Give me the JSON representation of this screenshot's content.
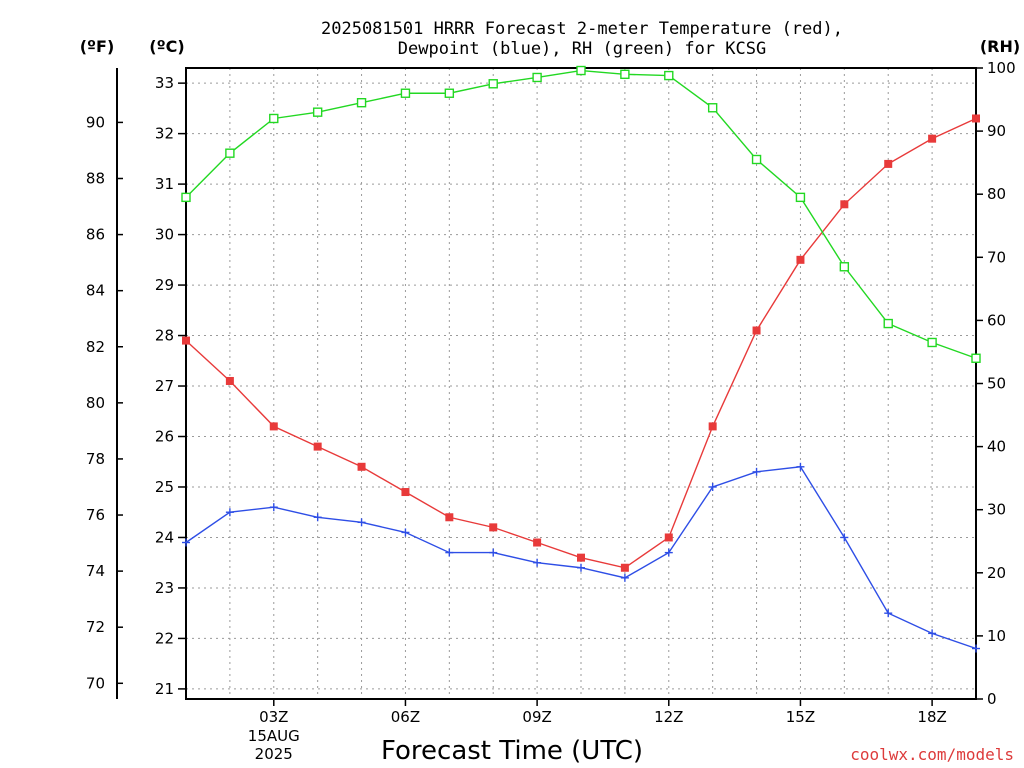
{
  "chart_data": {
    "type": "line",
    "title_lines": [
      "2025081501 HRRR Forecast 2-meter Temperature (red),",
      "Dewpoint (blue), RH (green) for KCSG"
    ],
    "xlabel": "Forecast Time (UTC)",
    "x_hours": [
      1,
      2,
      3,
      4,
      5,
      6,
      7,
      8,
      9,
      10,
      11,
      12,
      13,
      14,
      15,
      16,
      17,
      18,
      19
    ],
    "x_range": [
      1,
      19
    ],
    "x_ticks": [
      {
        "hour": 3,
        "label": "03Z",
        "sub": [
          "15AUG",
          "2025"
        ]
      },
      {
        "hour": 6,
        "label": "06Z"
      },
      {
        "hour": 9,
        "label": "09Z"
      },
      {
        "hour": 12,
        "label": "12Z"
      },
      {
        "hour": 15,
        "label": "15Z"
      },
      {
        "hour": 18,
        "label": "18Z"
      }
    ],
    "axis_c": {
      "unit": "(ºC)",
      "range": [
        20.8,
        33.3
      ],
      "ticks": [
        21,
        22,
        23,
        24,
        25,
        26,
        27,
        28,
        29,
        30,
        31,
        32,
        33
      ]
    },
    "axis_f": {
      "unit": "(ºF)",
      "ticks": [
        70,
        72,
        74,
        76,
        78,
        80,
        82,
        84,
        86,
        88,
        90
      ]
    },
    "axis_rh": {
      "unit": "(RH)",
      "range": [
        0,
        100
      ],
      "ticks": [
        0,
        10,
        20,
        30,
        40,
        50,
        60,
        70,
        80,
        90,
        100
      ]
    },
    "series": [
      {
        "name": "Temperature",
        "color": "#e83a3a",
        "marker": "filled-square",
        "axis": "c",
        "values": [
          27.9,
          27.1,
          26.2,
          25.8,
          25.4,
          24.9,
          24.4,
          24.2,
          23.9,
          23.6,
          23.4,
          24.0,
          26.2,
          28.1,
          29.5,
          30.6,
          31.4,
          31.9,
          32.3
        ]
      },
      {
        "name": "Dewpoint",
        "color": "#2e4ee6",
        "marker": "plus",
        "axis": "c",
        "values": [
          23.9,
          24.5,
          24.6,
          24.4,
          24.3,
          24.1,
          23.7,
          23.7,
          23.5,
          23.4,
          23.2,
          23.7,
          25.0,
          25.3,
          25.4,
          24.0,
          22.5,
          22.1,
          21.8
        ]
      },
      {
        "name": "RH",
        "color": "#22d822",
        "marker": "open-square",
        "axis": "rh",
        "values": [
          79.5,
          86.5,
          92,
          93,
          94.5,
          96,
          96,
          97.5,
          98.5,
          99.6,
          99,
          98.8,
          93.7,
          85.5,
          79.5,
          68.5,
          59.5,
          56.5,
          54
        ]
      }
    ],
    "grid": true,
    "credit": "coolwx.com/models"
  }
}
